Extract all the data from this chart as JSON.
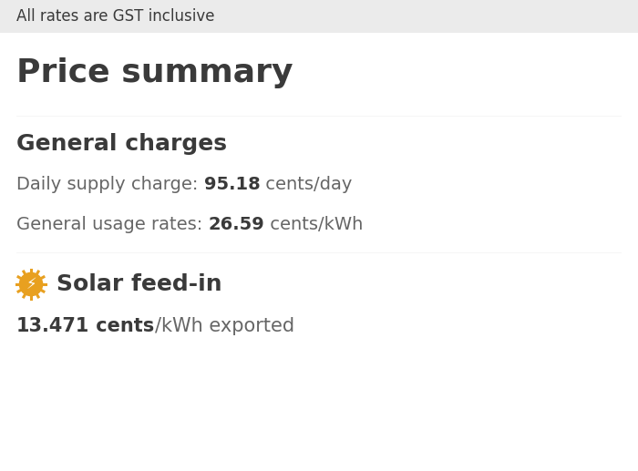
{
  "header_text": "All rates are GST inclusive",
  "header_bg": "#ebebeb",
  "main_bg": "#ffffff",
  "title": "Price summary",
  "title_color": "#3a3a3a",
  "title_fontsize": 26,
  "section1_title": "General charges",
  "section1_color": "#3a3a3a",
  "section1_fontsize": 18,
  "line1_label": "Daily supply charge: ",
  "line1_value": "95.18",
  "line1_unit": " cents/day",
  "line2_label": "General usage rates: ",
  "line2_value": "26.59",
  "line2_unit": " cents/kWh",
  "body_label_color": "#666666",
  "body_value_color": "#3a3a3a",
  "body_fontsize": 14,
  "section2_title": "Solar feed-in",
  "section2_color": "#3a3a3a",
  "section2_fontsize": 18,
  "solar_icon_color": "#e8a020",
  "solar_line_value": "13.471",
  "solar_line_bold_unit": "cents",
  "solar_line_suffix": "/kWh exported",
  "solar_value_color": "#3a3a3a",
  "solar_fontsize": 15,
  "divider_color": "#cccccc",
  "header_fontsize": 12
}
